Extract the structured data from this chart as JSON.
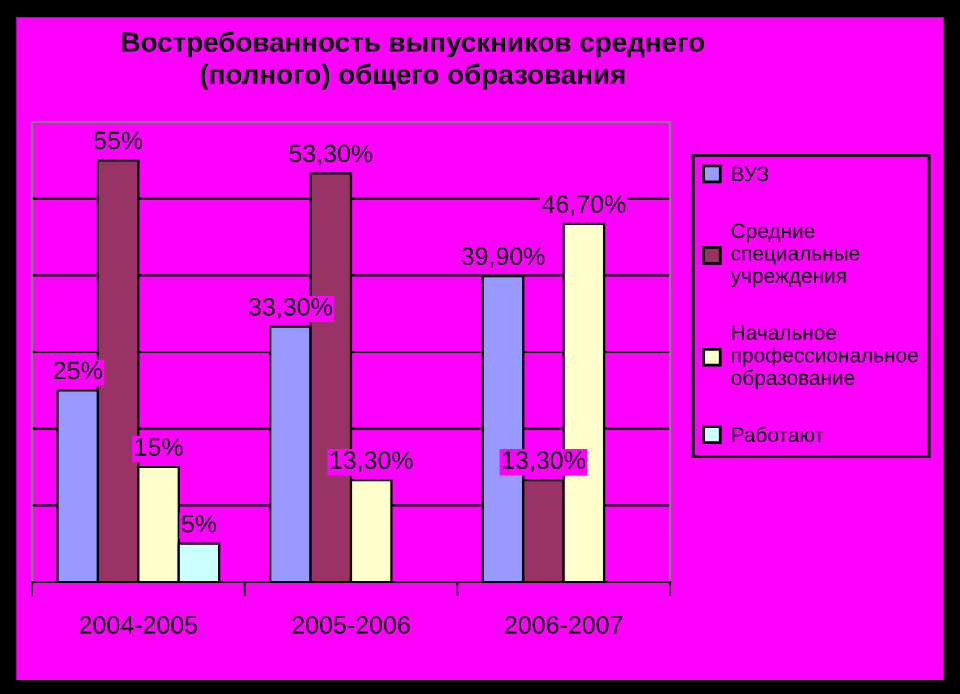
{
  "chart_data": {
    "type": "bar",
    "title": "Востребованность выпускников среднего\n(полного) общего образования",
    "categories": [
      "2004-2005",
      "2005-2006",
      "2006-2007"
    ],
    "series": [
      {
        "name": "ВУЗ",
        "color": "#9999ff",
        "values": [
          25,
          33.3,
          39.9
        ],
        "value_labels": [
          "25%",
          "33,30%",
          "39,90%"
        ]
      },
      {
        "name": "Средние специальные учреждения",
        "color": "#993366",
        "values": [
          55,
          53.3,
          13.3
        ],
        "value_labels": [
          "55%",
          "53,30%",
          "13,30%"
        ]
      },
      {
        "name": "Начальное профессиональное образование",
        "color": "#ffffcc",
        "values": [
          15,
          13.3,
          46.7
        ],
        "value_labels": [
          "15%",
          "13,30%",
          "46,70%"
        ]
      },
      {
        "name": "Работают",
        "color": "#ccffff",
        "values": [
          5,
          null,
          null
        ],
        "value_labels": [
          "5%",
          null,
          null
        ]
      }
    ],
    "ylim": [
      0,
      60
    ],
    "yticks": [
      {
        "value": 0,
        "label": null
      },
      {
        "value": 10,
        "label": null
      },
      {
        "value": 20,
        "label": null
      },
      {
        "value": 30,
        "label": null
      },
      {
        "value": 40,
        "label": null
      },
      {
        "value": 50,
        "label": null
      },
      {
        "value": 60,
        "label": null
      }
    ],
    "tick_labels": "x",
    "grid": "y",
    "legend": "right"
  }
}
